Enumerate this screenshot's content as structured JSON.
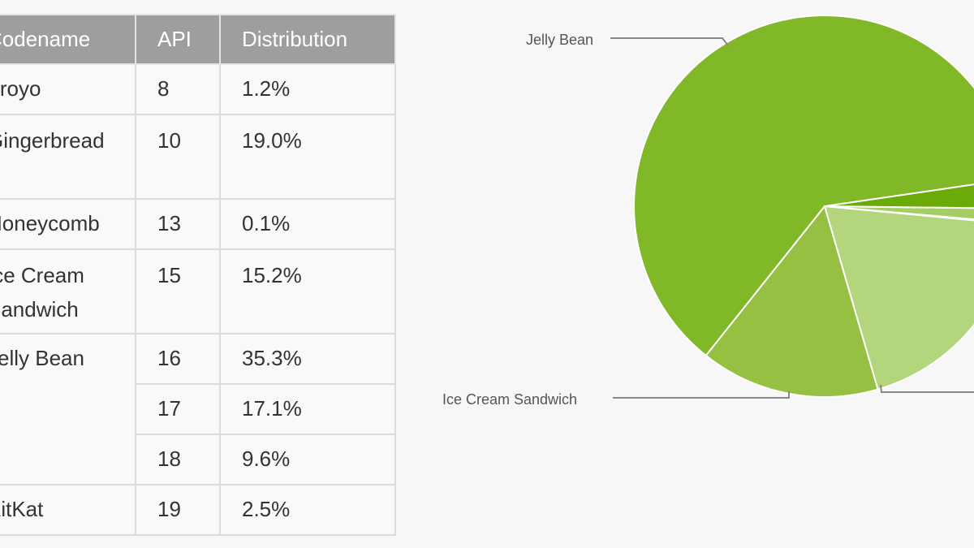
{
  "table": {
    "headers": [
      "Codename",
      "API",
      "Distribution"
    ],
    "rows": [
      {
        "codename": "Froyo",
        "api": "8",
        "dist": "1.2%"
      },
      {
        "codename": "Gingerbread",
        "api": "10",
        "dist": "19.0%"
      },
      {
        "codename": "Honeycomb",
        "api": "13",
        "dist": "0.1%"
      },
      {
        "codename": "Ice Cream Sandwich",
        "api": "15",
        "dist": "15.2%"
      },
      {
        "codename": "Jelly Bean",
        "api": "16",
        "dist": "35.3%"
      },
      {
        "codename": "",
        "api": "17",
        "dist": "17.1%"
      },
      {
        "codename": "",
        "api": "18",
        "dist": "9.6%"
      },
      {
        "codename": "KitKat",
        "api": "19",
        "dist": "2.5%"
      }
    ]
  },
  "chart_data": {
    "type": "pie",
    "slices": [
      {
        "name": "Ice Cream Sandwich",
        "value": 15.2,
        "color": "#95c042",
        "label": "Ice Cream Sandwich"
      },
      {
        "name": "Gingerbread",
        "value": 19.0,
        "color": "#b3d57c"
      },
      {
        "name": "Honeycomb",
        "value": 0.1,
        "color": "#c8e0a0"
      },
      {
        "name": "Froyo",
        "value": 1.2,
        "color": "#a6cd62"
      },
      {
        "name": "KitKat",
        "value": 2.5,
        "color": "#6aab08"
      },
      {
        "name": "Jelly Bean",
        "value": 62.0,
        "color": "#80b828",
        "label": "Jelly Bean"
      }
    ]
  }
}
